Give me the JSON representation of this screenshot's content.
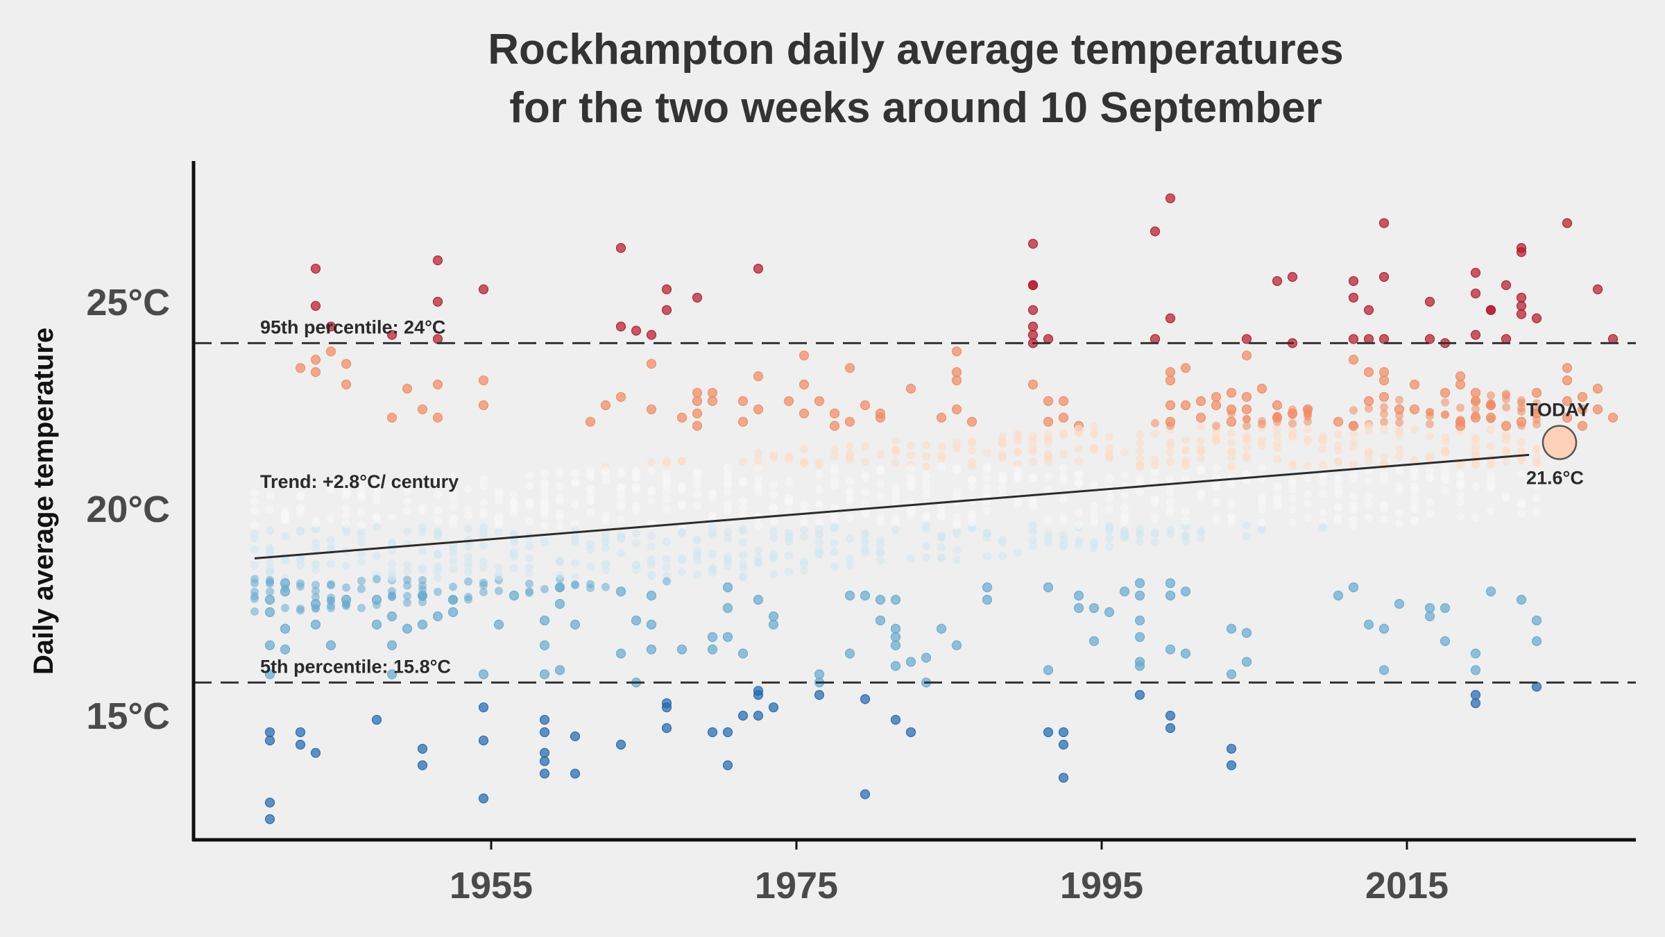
{
  "chart_data": {
    "type": "scatter",
    "title": [
      "Rockhampton daily average temperatures",
      "for the two weeks around 10 September"
    ],
    "ylabel": "Daily average temperature",
    "xlabel": "",
    "x_ticks": [
      1955,
      1975,
      1995,
      2015
    ],
    "y_ticks": [
      {
        "value": 15,
        "label": "15°C"
      },
      {
        "value": 20,
        "label": "20°C"
      },
      {
        "value": 25,
        "label": "25°C"
      }
    ],
    "xlim": [
      1935.5,
      2030
    ],
    "ylim": [
      12,
      28.4
    ],
    "grid": false,
    "colors": {
      "hot": "#b2182b",
      "warm": "#ef8a62",
      "mild_warm": "#fddbc7",
      "neutral": "#f7f7f7",
      "mild_cool": "#d1e5f0",
      "cool": "#67a9cf",
      "cold": "#2166ac",
      "trend": "#2b2b2b",
      "today": "#fdd0b8"
    },
    "percentile_95": {
      "value": 24.0,
      "label": "95th percentile: 24°C"
    },
    "percentile_5": {
      "value": 15.8,
      "label": "5th percentile: 15.8°C"
    },
    "trend": {
      "label": "Trend: +2.8°C/ century",
      "x_start": 1939.5,
      "y_start": 18.8,
      "x_end": 2023,
      "y_end": 21.3
    },
    "today": {
      "label": "TODAY",
      "value_label": "21.6°C",
      "year": 2025,
      "value": 21.6
    },
    "series_years": [
      1939,
      2023
    ],
    "days_per_year": 14,
    "points": [
      [
        1940,
        12.5
      ],
      [
        1940,
        12.9
      ],
      [
        1940,
        14.4
      ],
      [
        1940,
        14.6
      ],
      [
        1940,
        16.0
      ],
      [
        1940,
        16.7
      ],
      [
        1940,
        17.5
      ],
      [
        1940,
        17.8
      ],
      [
        1941,
        18.0
      ],
      [
        1941,
        17.1
      ],
      [
        1941,
        16.6
      ],
      [
        1941,
        18.2
      ],
      [
        1942,
        14.6
      ],
      [
        1942,
        14.3
      ],
      [
        1942,
        23.4
      ],
      [
        1943,
        25.8
      ],
      [
        1943,
        24.9
      ],
      [
        1943,
        23.6
      ],
      [
        1943,
        23.3
      ],
      [
        1943,
        14.1
      ],
      [
        1943,
        17.7
      ],
      [
        1943,
        17.2
      ],
      [
        1944,
        24.4
      ],
      [
        1944,
        23.8
      ],
      [
        1944,
        16.7
      ],
      [
        1945,
        23.5
      ],
      [
        1945,
        23.0
      ],
      [
        1945,
        17.8
      ],
      [
        1947,
        14.9
      ],
      [
        1947,
        17.8
      ],
      [
        1947,
        17.2
      ],
      [
        1948,
        16.7
      ],
      [
        1948,
        17.4
      ],
      [
        1948,
        16.0
      ],
      [
        1948,
        22.2
      ],
      [
        1948,
        24.2
      ],
      [
        1949,
        17.1
      ],
      [
        1949,
        22.9
      ],
      [
        1950,
        14.2
      ],
      [
        1950,
        13.8
      ],
      [
        1950,
        17.9
      ],
      [
        1950,
        17.2
      ],
      [
        1950,
        22.4
      ],
      [
        1951,
        26.0
      ],
      [
        1951,
        25.0
      ],
      [
        1951,
        24.1
      ],
      [
        1951,
        23.0
      ],
      [
        1951,
        22.2
      ],
      [
        1951,
        17.4
      ],
      [
        1952,
        17.8
      ],
      [
        1952,
        17.5
      ],
      [
        1954,
        25.3
      ],
      [
        1954,
        23.1
      ],
      [
        1954,
        22.5
      ],
      [
        1954,
        16.0
      ],
      [
        1954,
        15.2
      ],
      [
        1954,
        14.4
      ],
      [
        1954,
        13.0
      ],
      [
        1955,
        17.2
      ],
      [
        1956,
        17.9
      ],
      [
        1958,
        17.3
      ],
      [
        1958,
        16.7
      ],
      [
        1958,
        16.0
      ],
      [
        1958,
        14.9
      ],
      [
        1958,
        14.6
      ],
      [
        1958,
        14.1
      ],
      [
        1958,
        13.9
      ],
      [
        1958,
        13.6
      ],
      [
        1959,
        18.1
      ],
      [
        1959,
        17.7
      ],
      [
        1959,
        16.1
      ],
      [
        1960,
        17.2
      ],
      [
        1960,
        14.5
      ],
      [
        1960,
        13.6
      ],
      [
        1961,
        22.1
      ],
      [
        1962,
        22.5
      ],
      [
        1963,
        26.3
      ],
      [
        1963,
        24.4
      ],
      [
        1963,
        22.7
      ],
      [
        1963,
        18.0
      ],
      [
        1963,
        16.5
      ],
      [
        1963,
        14.3
      ],
      [
        1964,
        24.3
      ],
      [
        1964,
        17.3
      ],
      [
        1964,
        15.8
      ],
      [
        1965,
        24.2
      ],
      [
        1965,
        23.5
      ],
      [
        1965,
        22.4
      ],
      [
        1965,
        17.9
      ],
      [
        1965,
        17.2
      ],
      [
        1965,
        16.6
      ],
      [
        1966,
        25.3
      ],
      [
        1966,
        24.8
      ],
      [
        1966,
        15.3
      ],
      [
        1966,
        14.7
      ],
      [
        1966,
        15.2
      ],
      [
        1967,
        16.6
      ],
      [
        1967,
        22.2
      ],
      [
        1968,
        25.1
      ],
      [
        1968,
        22.6
      ],
      [
        1968,
        22.8
      ],
      [
        1968,
        22.3
      ],
      [
        1968,
        22.0
      ],
      [
        1969,
        22.8
      ],
      [
        1969,
        22.6
      ],
      [
        1969,
        16.9
      ],
      [
        1969,
        16.6
      ],
      [
        1969,
        14.6
      ],
      [
        1970,
        18.1
      ],
      [
        1970,
        17.6
      ],
      [
        1970,
        16.9
      ],
      [
        1970,
        14.6
      ],
      [
        1970,
        13.8
      ],
      [
        1971,
        22.1
      ],
      [
        1971,
        22.6
      ],
      [
        1971,
        16.5
      ],
      [
        1971,
        15.0
      ],
      [
        1972,
        25.8
      ],
      [
        1972,
        23.2
      ],
      [
        1972,
        22.4
      ],
      [
        1972,
        17.8
      ],
      [
        1972,
        15.6
      ],
      [
        1972,
        15.5
      ],
      [
        1972,
        15.0
      ],
      [
        1973,
        17.4
      ],
      [
        1973,
        17.2
      ],
      [
        1973,
        15.2
      ],
      [
        1974,
        22.6
      ],
      [
        1975,
        23.7
      ],
      [
        1975,
        23.0
      ],
      [
        1975,
        22.3
      ],
      [
        1976,
        22.6
      ],
      [
        1976,
        16.0
      ],
      [
        1976,
        15.8
      ],
      [
        1976,
        15.5
      ],
      [
        1977,
        22.3
      ],
      [
        1977,
        22.0
      ],
      [
        1978,
        23.4
      ],
      [
        1978,
        22.1
      ],
      [
        1978,
        17.9
      ],
      [
        1978,
        16.5
      ],
      [
        1979,
        22.5
      ],
      [
        1979,
        17.9
      ],
      [
        1979,
        13.1
      ],
      [
        1979,
        15.4
      ],
      [
        1980,
        22.2
      ],
      [
        1980,
        22.3
      ],
      [
        1980,
        17.8
      ],
      [
        1980,
        17.3
      ],
      [
        1981,
        17.8
      ],
      [
        1981,
        17.1
      ],
      [
        1981,
        16.2
      ],
      [
        1981,
        14.9
      ],
      [
        1981,
        16.7
      ],
      [
        1981,
        16.9
      ],
      [
        1982,
        22.9
      ],
      [
        1982,
        16.3
      ],
      [
        1982,
        14.6
      ],
      [
        1983,
        16.4
      ],
      [
        1983,
        15.8
      ],
      [
        1984,
        22.2
      ],
      [
        1984,
        17.1
      ],
      [
        1985,
        23.8
      ],
      [
        1985,
        23.3
      ],
      [
        1985,
        23.1
      ],
      [
        1985,
        22.4
      ],
      [
        1985,
        16.7
      ],
      [
        1986,
        22.1
      ],
      [
        1987,
        18.1
      ],
      [
        1987,
        17.8
      ],
      [
        1990,
        26.4
      ],
      [
        1990,
        25.4
      ],
      [
        1990,
        25.4
      ],
      [
        1990,
        24.8
      ],
      [
        1990,
        24.4
      ],
      [
        1990,
        24.2
      ],
      [
        1990,
        24.0
      ],
      [
        1990,
        23.0
      ],
      [
        1991,
        24.1
      ],
      [
        1991,
        22.6
      ],
      [
        1991,
        22.1
      ],
      [
        1991,
        18.1
      ],
      [
        1991,
        16.1
      ],
      [
        1991,
        14.6
      ],
      [
        1992,
        22.6
      ],
      [
        1992,
        22.2
      ],
      [
        1992,
        14.6
      ],
      [
        1992,
        14.3
      ],
      [
        1992,
        13.5
      ],
      [
        1993,
        22.0
      ],
      [
        1993,
        21.9
      ],
      [
        1993,
        17.9
      ],
      [
        1993,
        17.6
      ],
      [
        1994,
        17.6
      ],
      [
        1994,
        16.8
      ],
      [
        1995,
        17.5
      ],
      [
        1996,
        18.0
      ],
      [
        1997,
        18.2
      ],
      [
        1997,
        17.9
      ],
      [
        1997,
        17.3
      ],
      [
        1997,
        16.9
      ],
      [
        1997,
        16.3
      ],
      [
        1997,
        16.2
      ],
      [
        1997,
        15.5
      ],
      [
        1998,
        26.7
      ],
      [
        1998,
        24.1
      ],
      [
        1999,
        27.5
      ],
      [
        1999,
        24.6
      ],
      [
        1999,
        23.3
      ],
      [
        1999,
        23.1
      ],
      [
        1999,
        22.5
      ],
      [
        1999,
        22.1
      ],
      [
        1999,
        18.2
      ],
      [
        1999,
        17.9
      ],
      [
        1999,
        16.6
      ],
      [
        1999,
        15.0
      ],
      [
        1999,
        14.7
      ],
      [
        2000,
        23.4
      ],
      [
        2000,
        22.5
      ],
      [
        2000,
        18.0
      ],
      [
        2000,
        16.5
      ],
      [
        2001,
        22.6
      ],
      [
        2001,
        22.2
      ],
      [
        2002,
        22.7
      ],
      [
        2002,
        22.5
      ],
      [
        2003,
        22.8
      ],
      [
        2003,
        22.4
      ],
      [
        2003,
        22.1
      ],
      [
        2003,
        17.1
      ],
      [
        2003,
        16.0
      ],
      [
        2003,
        14.2
      ],
      [
        2003,
        13.8
      ],
      [
        2004,
        24.1
      ],
      [
        2004,
        23.7
      ],
      [
        2004,
        22.7
      ],
      [
        2004,
        22.4
      ],
      [
        2004,
        17.0
      ],
      [
        2004,
        16.3
      ],
      [
        2005,
        22.9
      ],
      [
        2006,
        25.5
      ],
      [
        2006,
        22.5
      ],
      [
        2006,
        22.2
      ],
      [
        2007,
        25.6
      ],
      [
        2007,
        24.0
      ],
      [
        2007,
        22.3
      ],
      [
        2008,
        22.4
      ],
      [
        2010,
        22.1
      ],
      [
        2010,
        17.9
      ],
      [
        2011,
        25.5
      ],
      [
        2011,
        25.1
      ],
      [
        2011,
        24.1
      ],
      [
        2011,
        23.6
      ],
      [
        2011,
        22.0
      ],
      [
        2011,
        18.1
      ],
      [
        2012,
        24.8
      ],
      [
        2012,
        24.1
      ],
      [
        2012,
        23.3
      ],
      [
        2012,
        22.6
      ],
      [
        2012,
        17.2
      ],
      [
        2013,
        26.9
      ],
      [
        2013,
        25.6
      ],
      [
        2013,
        24.1
      ],
      [
        2013,
        23.3
      ],
      [
        2013,
        23.1
      ],
      [
        2013,
        22.7
      ],
      [
        2013,
        17.1
      ],
      [
        2013,
        16.1
      ],
      [
        2014,
        22.4
      ],
      [
        2014,
        17.7
      ],
      [
        2015,
        23.0
      ],
      [
        2015,
        22.4
      ],
      [
        2016,
        25.0
      ],
      [
        2016,
        24.1
      ],
      [
        2016,
        17.6
      ],
      [
        2016,
        17.4
      ],
      [
        2017,
        24.0
      ],
      [
        2017,
        22.8
      ],
      [
        2017,
        17.6
      ],
      [
        2017,
        16.8
      ],
      [
        2018,
        23.2
      ],
      [
        2018,
        23.0
      ],
      [
        2018,
        22.1
      ],
      [
        2018,
        22.0
      ],
      [
        2019,
        25.7
      ],
      [
        2019,
        25.2
      ],
      [
        2019,
        24.2
      ],
      [
        2019,
        22.8
      ],
      [
        2019,
        22.6
      ],
      [
        2019,
        22.2
      ],
      [
        2019,
        15.3
      ],
      [
        2019,
        15.5
      ],
      [
        2019,
        16.1
      ],
      [
        2019,
        16.5
      ],
      [
        2020,
        24.8
      ],
      [
        2020,
        24.8
      ],
      [
        2020,
        22.2
      ],
      [
        2020,
        22.5
      ],
      [
        2020,
        18.0
      ],
      [
        2021,
        25.4
      ],
      [
        2021,
        24.1
      ],
      [
        2021,
        22.0
      ],
      [
        2022,
        26.3
      ],
      [
        2022,
        26.2
      ],
      [
        2022,
        25.1
      ],
      [
        2022,
        24.9
      ],
      [
        2022,
        24.7
      ],
      [
        2022,
        22.1
      ],
      [
        2022,
        17.8
      ],
      [
        2023,
        24.6
      ],
      [
        2023,
        22.8
      ],
      [
        2023,
        15.7
      ],
      [
        2023,
        16.8
      ],
      [
        2023,
        17.3
      ],
      [
        2023,
        22.3
      ],
      [
        2025,
        26.9
      ],
      [
        2025,
        23.4
      ],
      [
        2025,
        23.1
      ],
      [
        2025,
        22.6
      ],
      [
        2025,
        22.2
      ],
      [
        2026,
        22.7
      ],
      [
        2026,
        22.4
      ],
      [
        2026,
        22.0
      ],
      [
        2027,
        25.3
      ],
      [
        2027,
        22.9
      ],
      [
        2027,
        22.4
      ],
      [
        2028,
        24.1
      ],
      [
        2028,
        22.2
      ]
    ]
  }
}
